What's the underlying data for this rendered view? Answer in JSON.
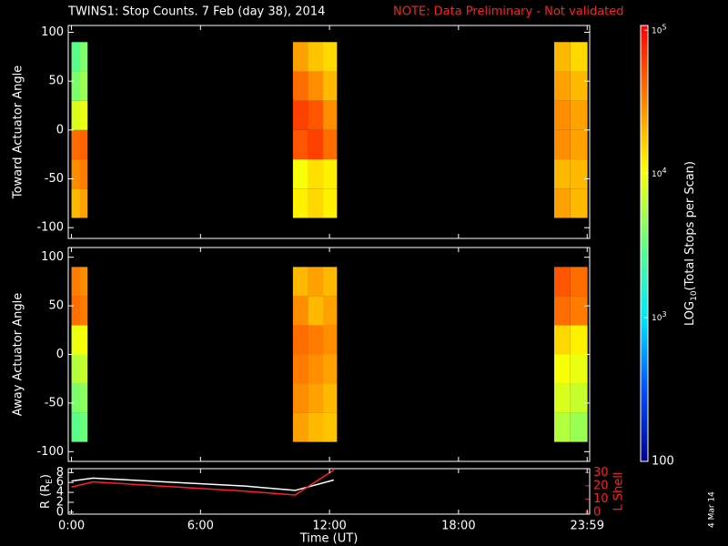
{
  "title": "TWINS1: Stop Counts.  7 Feb (day  38), 2014",
  "note": "NOTE: Data Preliminary - Not validated",
  "date_stamp": "4 Mar 14",
  "colorbar": {
    "label": {
      "text": "LOG",
      "sub": "10",
      "tail": "(Total Stops per Scan)"
    },
    "clim": [
      100,
      108000
    ],
    "log": true,
    "colorscale": [
      "#00008c",
      "#0050ff",
      "#00e8ff",
      "#60ff80",
      "#ffff00",
      "#ff8000",
      "#ff0000"
    ],
    "ticks": [
      {
        "value": 100000,
        "label": "10",
        "sup": "5"
      },
      {
        "value": 10000,
        "label": "10",
        "sup": "4"
      },
      {
        "value": 1000,
        "label": "10",
        "sup": "3"
      },
      100
    ]
  },
  "chart_data": [
    {
      "type": "heatmap",
      "y_label": "Toward Actuator Angle",
      "xlim": [
        -0.15,
        24.1
      ],
      "ylim": [
        -111,
        107
      ],
      "yticks": [
        -100,
        -50,
        0,
        50,
        100
      ],
      "x_bins": [
        0,
        0.4,
        0.75,
        10.3,
        11.0,
        11.7,
        12.35,
        22.45,
        23.2,
        24.0
      ],
      "y_bins": [
        -90,
        -60,
        -30,
        0,
        30,
        60,
        90
      ],
      "values": [
        [
          20000,
          25000,
          null,
          12000,
          15000,
          12000,
          null,
          25000,
          20000
        ],
        [
          30000,
          35000,
          null,
          10000,
          14000,
          12000,
          null,
          20000,
          20000
        ],
        [
          40000,
          45000,
          null,
          50000,
          60000,
          40000,
          null,
          30000,
          25000
        ],
        [
          8000,
          9000,
          null,
          60000,
          50000,
          30000,
          null,
          30000,
          25000
        ],
        [
          4000,
          5000,
          null,
          40000,
          30000,
          20000,
          null,
          25000,
          20000
        ],
        [
          3000,
          4000,
          null,
          25000,
          18000,
          15000,
          null,
          20000,
          15000
        ]
      ]
    },
    {
      "type": "heatmap",
      "y_label": "Away Actuator Angle",
      "xlim": [
        -0.15,
        24.1
      ],
      "ylim": [
        -110,
        110
      ],
      "yticks": [
        -100,
        -50,
        0,
        50,
        100
      ],
      "x_bins": [
        0,
        0.4,
        0.75,
        10.3,
        11.0,
        11.7,
        12.35,
        22.45,
        23.2,
        24.0
      ],
      "y_bins": [
        -90,
        -60,
        -30,
        0,
        30,
        60,
        90
      ],
      "values": [
        [
          3000,
          3500,
          null,
          25000,
          20000,
          18000,
          null,
          6000,
          5000
        ],
        [
          4000,
          4500,
          null,
          30000,
          25000,
          20000,
          null,
          8000,
          7000
        ],
        [
          6000,
          7000,
          null,
          35000,
          30000,
          25000,
          null,
          10000,
          9000
        ],
        [
          9000,
          10000,
          null,
          40000,
          35000,
          30000,
          null,
          15000,
          12000
        ],
        [
          40000,
          35000,
          null,
          30000,
          20000,
          25000,
          null,
          40000,
          35000
        ],
        [
          35000,
          30000,
          null,
          20000,
          25000,
          20000,
          null,
          50000,
          40000
        ]
      ]
    },
    {
      "type": "line",
      "y_label": {
        "text": "R (R",
        "sub": "E",
        "tail": ")"
      },
      "y2_label": "L Shell",
      "x_label": "Time (UT)",
      "xlim": [
        -0.15,
        24.1
      ],
      "xticks": [
        {
          "value": 0,
          "label": "0:00"
        },
        {
          "value": 6,
          "label": "6:00"
        },
        {
          "value": 12,
          "label": "12:00"
        },
        {
          "value": 18,
          "label": "18:00"
        },
        {
          "value": 23.983,
          "label": "23:59"
        }
      ],
      "ylim": [
        -0.4,
        8.8
      ],
      "yticks": [
        0,
        2,
        4,
        6,
        8
      ],
      "y2lim": [
        -1.5,
        33
      ],
      "y2ticks": [
        0,
        10,
        20,
        30
      ],
      "x": [
        0,
        1,
        4,
        8,
        10.4,
        12.2
      ],
      "series": [
        {
          "name": "R",
          "color": "#ffffff",
          "values": [
            6.3,
            6.9,
            6.2,
            5.3,
            4.4,
            6.5
          ]
        },
        {
          "name": "L Shell",
          "color": "#ff2020",
          "axis": "y2",
          "values": [
            19,
            23,
            20,
            16,
            13,
            32
          ]
        }
      ]
    }
  ]
}
